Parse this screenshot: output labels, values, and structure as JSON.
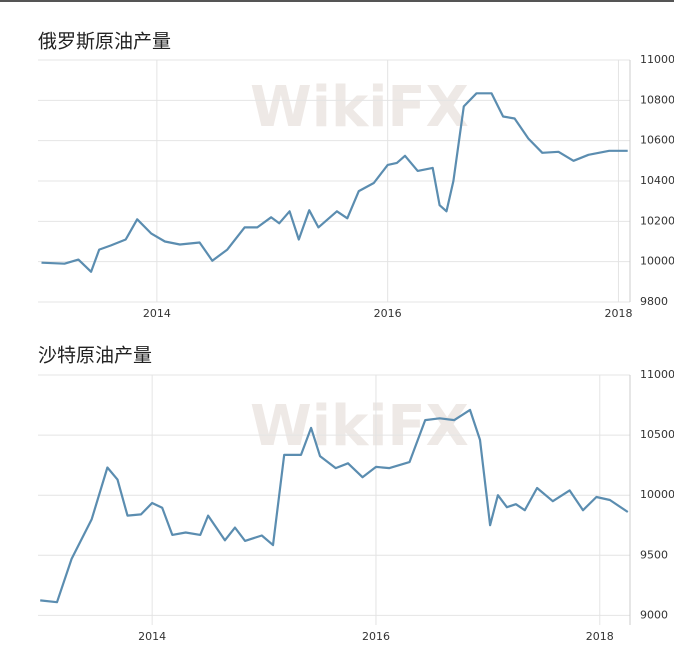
{
  "chart_data": [
    {
      "type": "line",
      "title": "俄罗斯原油产量",
      "watermark": "WikiFX",
      "color": "#5b8db0",
      "grid": true,
      "x": [
        2013.0,
        2013.2,
        2013.32,
        2013.43,
        2013.5,
        2013.6,
        2013.73,
        2013.83,
        2013.95,
        2014.07,
        2014.2,
        2014.37,
        2014.48,
        2014.61,
        2014.76,
        2014.87,
        2014.99,
        2015.06,
        2015.15,
        2015.23,
        2015.32,
        2015.4,
        2015.56,
        2015.65,
        2015.75,
        2015.88,
        2016.0,
        2016.08,
        2016.15,
        2016.26,
        2016.39,
        2016.45,
        2016.51,
        2016.57,
        2016.66,
        2016.77,
        2016.9,
        2017.0,
        2017.1,
        2017.22,
        2017.34,
        2017.48,
        2017.61,
        2017.74,
        2017.92,
        2018.08
      ],
      "values": [
        9995,
        9990,
        10010,
        9950,
        10060,
        10080,
        10110,
        10210,
        10140,
        10100,
        10085,
        10095,
        10005,
        10060,
        10170,
        10170,
        10220,
        10190,
        10250,
        10110,
        10255,
        10170,
        10250,
        10215,
        10350,
        10390,
        10480,
        10490,
        10525,
        10450,
        10465,
        10280,
        10250,
        10400,
        10770,
        10835,
        10835,
        10720,
        10710,
        10610,
        10540,
        10545,
        10500,
        10530,
        10550,
        10550
      ],
      "xlim": [
        2012.97,
        2018.1
      ],
      "xticks": [
        2014,
        2016,
        2018
      ],
      "ylim": [
        9800,
        11000
      ],
      "yticks": [
        9800,
        10000,
        10200,
        10400,
        10600,
        10800,
        11000
      ]
    },
    {
      "type": "line",
      "title": "沙特原油产量",
      "watermark": "WikiFX",
      "color": "#5b8db0",
      "grid": true,
      "x": [
        2013.0,
        2013.15,
        2013.28,
        2013.46,
        2013.6,
        2013.69,
        2013.78,
        2013.9,
        2014.0,
        2014.09,
        2014.18,
        2014.3,
        2014.43,
        2014.5,
        2014.65,
        2014.74,
        2014.83,
        2014.98,
        2015.08,
        2015.18,
        2015.33,
        2015.42,
        2015.5,
        2015.64,
        2015.75,
        2015.88,
        2016.0,
        2016.12,
        2016.3,
        2016.44,
        2016.57,
        2016.7,
        2016.84,
        2016.93,
        2017.02,
        2017.09,
        2017.17,
        2017.25,
        2017.33,
        2017.44,
        2017.58,
        2017.73,
        2017.85,
        2017.97,
        2018.09,
        2018.25
      ],
      "values": [
        9125,
        9110,
        9470,
        9800,
        10230,
        10130,
        9830,
        9840,
        9935,
        9895,
        9670,
        9690,
        9670,
        9830,
        9625,
        9730,
        9620,
        9665,
        9585,
        10335,
        10335,
        10560,
        10325,
        10225,
        10265,
        10150,
        10235,
        10225,
        10275,
        10625,
        10640,
        10625,
        10710,
        10460,
        9750,
        10000,
        9900,
        9925,
        9875,
        10060,
        9950,
        10040,
        9875,
        9985,
        9960,
        9860
      ],
      "xlim": [
        2012.98,
        2018.27
      ],
      "xticks": [
        2014,
        2016,
        2018
      ],
      "ylim": [
        8920,
        11000
      ],
      "yticks": [
        9000,
        9500,
        10000,
        10500,
        11000
      ]
    }
  ]
}
